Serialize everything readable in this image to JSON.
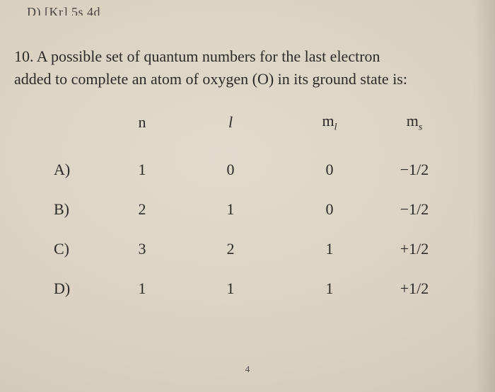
{
  "fragment": "D)   [Kr] 5s 4d",
  "question_number": "10.",
  "question_text_1": "A possible set of quantum numbers for the last electron",
  "question_text_2": "added to complete an atom of oxygen (O) in its ground state is:",
  "headers": {
    "n": "n",
    "l": "l",
    "ml_m": "m",
    "ml_sub": "l",
    "ms_m": "m",
    "ms_sub": "s"
  },
  "rows": [
    {
      "opt": "A)",
      "n": "1",
      "l": "0",
      "ml": "0",
      "ms": "−1/2"
    },
    {
      "opt": "B)",
      "n": "2",
      "l": "1",
      "ml": "0",
      "ms": "−1/2"
    },
    {
      "opt": "C)",
      "n": "3",
      "l": "2",
      "ml": "1",
      "ms": "+1/2"
    },
    {
      "opt": "D)",
      "n": "1",
      "l": "1",
      "ml": "1",
      "ms": "+1/2"
    }
  ],
  "page_number": "4"
}
